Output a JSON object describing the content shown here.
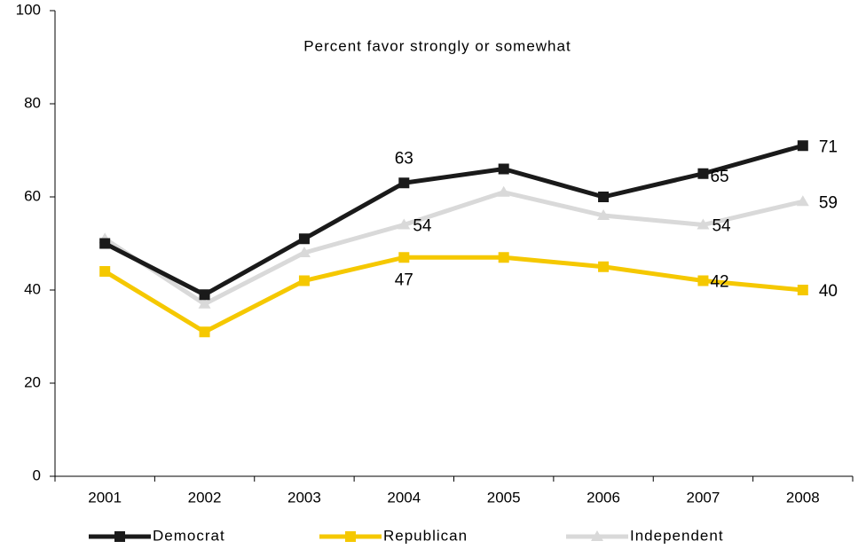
{
  "chart_data": {
    "type": "line",
    "title": "Percent favor strongly or somewhat",
    "categories": [
      "2001",
      "2002",
      "2003",
      "2004",
      "2005",
      "2006",
      "2007",
      "2008"
    ],
    "series": [
      {
        "name": "Democrat",
        "color": "#1a1a1a",
        "marker": "square",
        "values": [
          50,
          39,
          51,
          63,
          66,
          60,
          65,
          71
        ],
        "value_labels": [
          null,
          null,
          null,
          "63",
          null,
          null,
          "65",
          "71"
        ]
      },
      {
        "name": "Republican",
        "color": "#f5c800",
        "marker": "square",
        "values": [
          44,
          31,
          42,
          47,
          47,
          45,
          42,
          40
        ],
        "value_labels": [
          null,
          null,
          null,
          "47",
          null,
          null,
          "42",
          "40"
        ]
      },
      {
        "name": "Independent",
        "color": "#d9d9d9",
        "marker": "triangle",
        "values": [
          51,
          37,
          48,
          54,
          61,
          56,
          54,
          59
        ],
        "value_labels": [
          null,
          null,
          null,
          "54",
          null,
          null,
          "54",
          "59"
        ]
      }
    ],
    "ylim": [
      0,
      100
    ],
    "yticks": [
      0,
      20,
      40,
      60,
      80,
      100
    ],
    "grid": false,
    "legend": "bottom"
  }
}
